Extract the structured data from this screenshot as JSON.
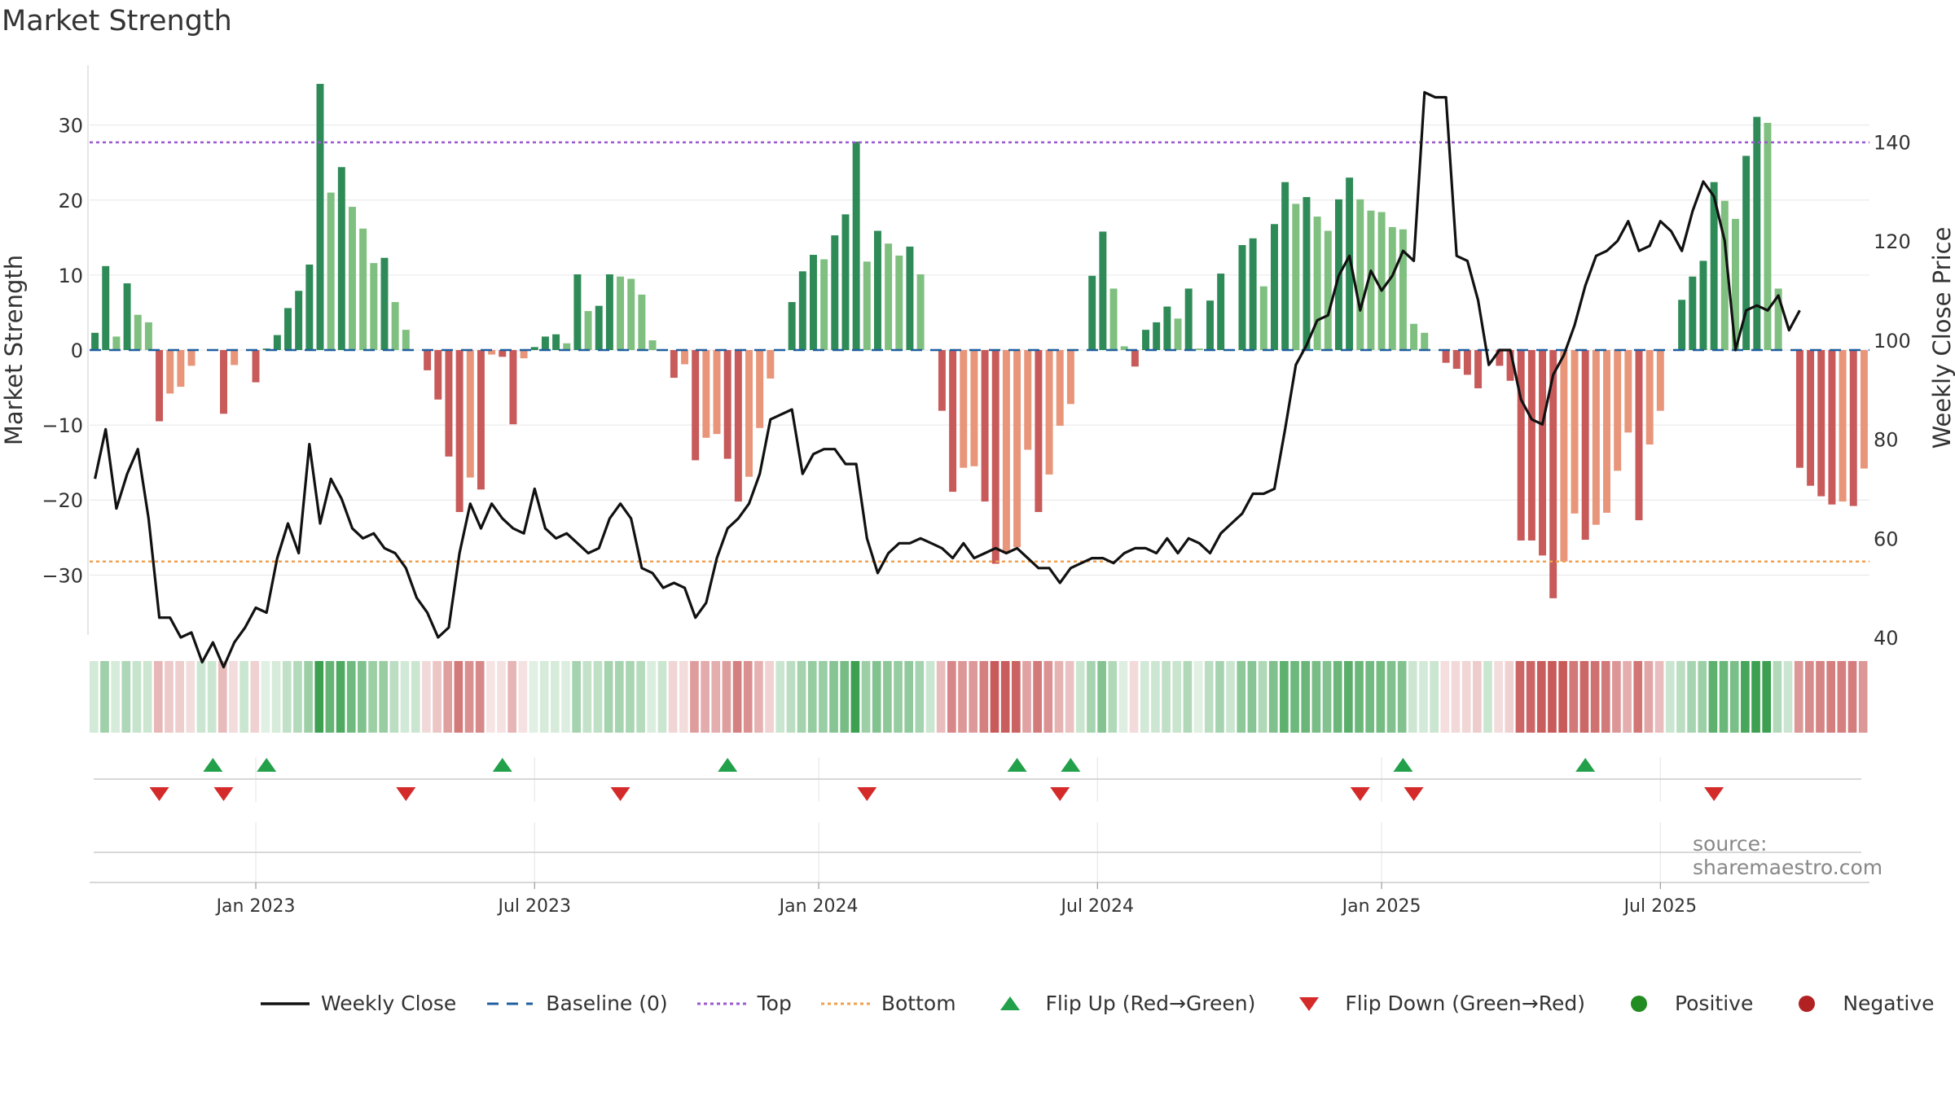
{
  "title": "Market Strength",
  "source_text": "source: sharemaestro.com",
  "colors": {
    "pos_dark": "#2e8b57",
    "pos_light": "#7fbf7f",
    "neg_dark": "#c85a5a",
    "neg_light": "#e8957a",
    "close": "#111111",
    "baseline": "#1f5fa0",
    "top": "#9b59d0",
    "bottom": "#f0a050",
    "flip_up": "#22a04a",
    "flip_down": "#d42a2a",
    "positive_dot": "#228b22",
    "negative_dot": "#b22222"
  },
  "legend": [
    {
      "label": "Weekly Close",
      "icon": "line-icon",
      "color": "#111111"
    },
    {
      "label": "Baseline (0)",
      "icon": "dash-icon",
      "color": "#1f5fa0"
    },
    {
      "label": "Top",
      "icon": "dotted-icon",
      "color": "#9b59d0"
    },
    {
      "label": "Bottom",
      "icon": "dotted-icon",
      "color": "#f0a050"
    },
    {
      "label": "Flip Up (Red→Green)",
      "icon": "triangle-up-icon",
      "color": "#22a04a"
    },
    {
      "label": "Flip Down (Green→Red)",
      "icon": "triangle-down-icon",
      "color": "#d42a2a"
    },
    {
      "label": "Positive",
      "icon": "dot-icon",
      "color": "#228b22"
    },
    {
      "label": "Negative",
      "icon": "dot-icon",
      "color": "#b22222"
    }
  ],
  "chart_data": {
    "type": "bar+line",
    "title": "Market Strength",
    "ylabel": "Market Strength",
    "y2label": "Weekly Close Price",
    "ylim": [
      -38,
      38
    ],
    "y2lim": [
      40,
      155
    ],
    "yticks": [
      30,
      20,
      10,
      0,
      -10,
      -20,
      -30
    ],
    "ytick_labels": [
      "30",
      "20",
      "10",
      "0",
      "−10",
      "−20",
      "−30"
    ],
    "y2ticks": [
      140,
      120,
      100,
      80,
      60,
      40
    ],
    "xticks": [
      {
        "label": "Jan 2023",
        "week": 15
      },
      {
        "label": "Jul 2023",
        "week": 41
      },
      {
        "label": "Jan 2024",
        "week": 67.5
      },
      {
        "label": "Jul 2024",
        "week": 93.5
      },
      {
        "label": "Jan 2025",
        "week": 120
      },
      {
        "label": "Jul 2025",
        "week": 146
      }
    ],
    "top_level": 27.7,
    "bottom_level": -28.2,
    "baseline": 0,
    "strength": [
      2.3,
      11.2,
      1.8,
      8.9,
      4.7,
      3.7,
      -9.5,
      -5.8,
      -4.9,
      -2.1,
      0,
      0,
      -8.5,
      -2.0,
      0,
      -4.3,
      0.2,
      2.0,
      5.6,
      7.9,
      11.4,
      35.5,
      21.0,
      24.4,
      19.1,
      16.2,
      11.6,
      12.3,
      6.4,
      2.7,
      0,
      -2.7,
      -6.6,
      -14.2,
      -21.6,
      -17.0,
      -18.6,
      -0.6,
      -0.9,
      -9.9,
      -1.1,
      0.4,
      1.8,
      2.1,
      0.9,
      10.1,
      5.2,
      5.9,
      10.1,
      9.8,
      9.5,
      7.4,
      1.3,
      0,
      -3.7,
      -1.9,
      -14.7,
      -11.7,
      -11.2,
      -14.5,
      -20.2,
      -16.9,
      -10.4,
      -3.8,
      0,
      6.4,
      10.5,
      12.7,
      12.1,
      15.3,
      18.1,
      27.8,
      11.8,
      15.9,
      14.2,
      12.6,
      13.8,
      10.1,
      0,
      -8.1,
      -18.9,
      -15.7,
      -15.5,
      -20.2,
      -28.5,
      -27.1,
      -26.3,
      -13.3,
      -21.6,
      -16.6,
      -10.1,
      -7.2,
      0,
      9.9,
      15.8,
      8.2,
      0.5,
      -2.2,
      2.7,
      3.7,
      5.8,
      4.2,
      8.2,
      0.2,
      6.6,
      10.2,
      0,
      14.0,
      14.9,
      8.5,
      16.8,
      22.4,
      19.5,
      20.4,
      17.8,
      15.9,
      20.1,
      23.0,
      20.1,
      18.6,
      18.4,
      16.4,
      16.1,
      3.5,
      2.3,
      0,
      -1.7,
      -2.5,
      -3.3,
      -5.1,
      0,
      -2.1,
      -4.1,
      -25.4,
      -25.4,
      -27.4,
      -33.1,
      -28.2,
      -21.8,
      -25.3,
      -23.3,
      -21.7,
      -16.1,
      -11.0,
      -22.7,
      -12.6,
      -8.1,
      0,
      6.7,
      9.8,
      11.9,
      22.4,
      19.9,
      17.5,
      25.9,
      31.1,
      30.3,
      8.2,
      0,
      -15.7,
      -18.1,
      -19.5,
      -20.6,
      -20.2,
      -20.8,
      -15.8
    ],
    "weekly_close": [
      72,
      82,
      66,
      73,
      78,
      64,
      44,
      44,
      40,
      41,
      35,
      39,
      34,
      39,
      42,
      46,
      45,
      56,
      63,
      57,
      79,
      63,
      72,
      68,
      62,
      60,
      61,
      58,
      57,
      54,
      48,
      45,
      40,
      42,
      57,
      67,
      62,
      67,
      64,
      62,
      61,
      70,
      62,
      60,
      61,
      59,
      57,
      58,
      64,
      67,
      64,
      54,
      53,
      50,
      51,
      50,
      44,
      47,
      56,
      62,
      64,
      67,
      73,
      84,
      85,
      86,
      73,
      77,
      78,
      78,
      75,
      75,
      60,
      53,
      57,
      59,
      59,
      60,
      59,
      58,
      56,
      59,
      56,
      57,
      58,
      57,
      58,
      56,
      54,
      54,
      51,
      54,
      55,
      56,
      56,
      55,
      57,
      58,
      58,
      57,
      60,
      57,
      60,
      59,
      57,
      61,
      63,
      65,
      69,
      69,
      70,
      82,
      95,
      99,
      104,
      105,
      113,
      117,
      106,
      114,
      110,
      113,
      118,
      116,
      150,
      149,
      149,
      117,
      116,
      108,
      95,
      98,
      98,
      88,
      84,
      83,
      93,
      97,
      103,
      111,
      117,
      118,
      120,
      124,
      118,
      119,
      124,
      122,
      118,
      126,
      132,
      129,
      120,
      98,
      106,
      107,
      106,
      109,
      102,
      106
    ],
    "flip_up_weeks": [
      11,
      16,
      38,
      59,
      86,
      91,
      122,
      139
    ],
    "flip_down_weeks": [
      6,
      12,
      29,
      49,
      72,
      90,
      118,
      123,
      151
    ]
  }
}
